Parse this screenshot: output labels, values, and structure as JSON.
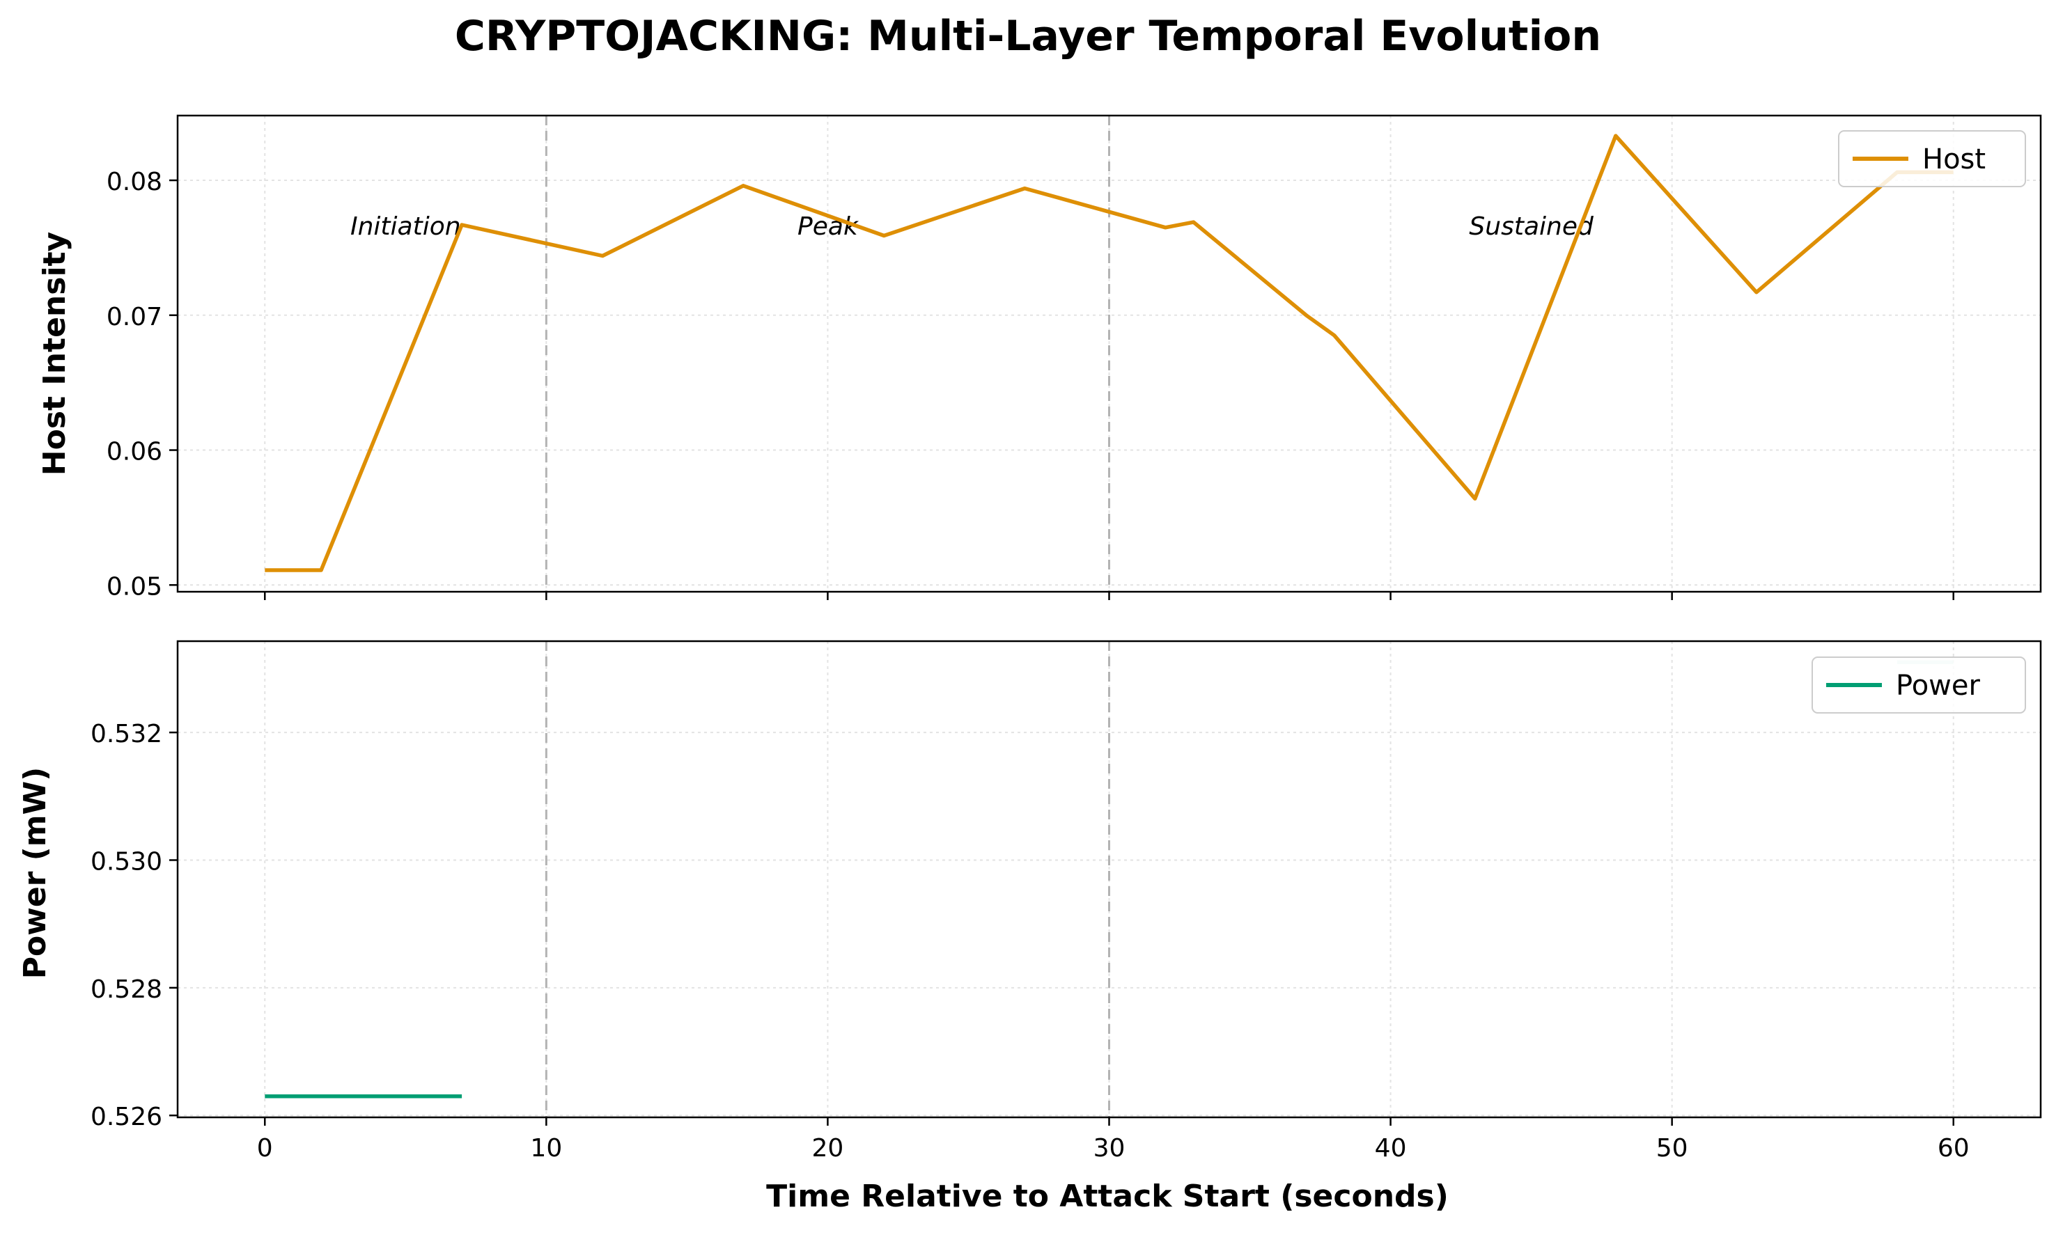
{
  "figure": {
    "title": "CRYPTOJACKING: Multi-Layer Temporal Evolution",
    "xlabel": "Time Relative to Attack Start (seconds)"
  },
  "colors": {
    "host": "#DE8F05",
    "power": "#029E73",
    "phase_line": "#b3b3b3",
    "grid": "#e3e3e3",
    "axes": "#000000"
  },
  "chart_data": [
    {
      "type": "line",
      "panel": "top",
      "ylabel": "Host Intensity",
      "xlim": [
        -3.1,
        63.1
      ],
      "ylim": [
        0.0495,
        0.0848
      ],
      "xticks": [
        0,
        10,
        20,
        30,
        40,
        50,
        60
      ],
      "yticks": [
        0.05,
        0.06,
        0.07,
        0.08
      ],
      "ytick_labels": [
        "0.05",
        "0.06",
        "0.07",
        "0.08"
      ],
      "grid": true,
      "legend_position": "top-right",
      "phase_lines": [
        10,
        30
      ],
      "annotations": [
        {
          "text": "Initiation",
          "x": 5,
          "y": 0.0766
        },
        {
          "text": "Peak",
          "x": 20,
          "y": 0.0766
        },
        {
          "text": "Sustained",
          "x": 45,
          "y": 0.0766
        }
      ],
      "series": [
        {
          "name": "Host",
          "x": [
            0,
            2,
            7,
            12,
            17,
            22,
            27,
            32,
            33,
            37,
            38,
            43,
            48,
            53,
            58,
            60
          ],
          "y": [
            0.0511,
            0.0511,
            0.0767,
            0.0744,
            0.0796,
            0.0759,
            0.0794,
            0.0765,
            0.0769,
            0.07,
            0.0685,
            0.0564,
            0.0833,
            0.0717,
            0.0806,
            0.0806
          ]
        }
      ]
    },
    {
      "type": "line",
      "panel": "bottom",
      "ylabel": "Power (mW)",
      "xlim": [
        -3.1,
        63.1
      ],
      "ylim": [
        0.52597,
        0.53343
      ],
      "xticks": [
        0,
        10,
        20,
        30,
        40,
        50,
        60
      ],
      "xtick_labels": [
        "0",
        "10",
        "20",
        "30",
        "40",
        "50",
        "60"
      ],
      "yticks": [
        0.526,
        0.528,
        0.53,
        0.532
      ],
      "ytick_labels": [
        "0.526",
        "0.528",
        "0.530",
        "0.532"
      ],
      "grid": true,
      "legend_position": "top-right",
      "phase_lines": [
        10,
        30
      ],
      "series": [
        {
          "name": "Power",
          "x": [
            0,
            7
          ],
          "y": [
            0.5263,
            0.5263
          ]
        },
        {
          "x": [
            58,
            60
          ],
          "y": [
            0.5331,
            0.5331
          ],
          "faded": true
        }
      ]
    }
  ]
}
